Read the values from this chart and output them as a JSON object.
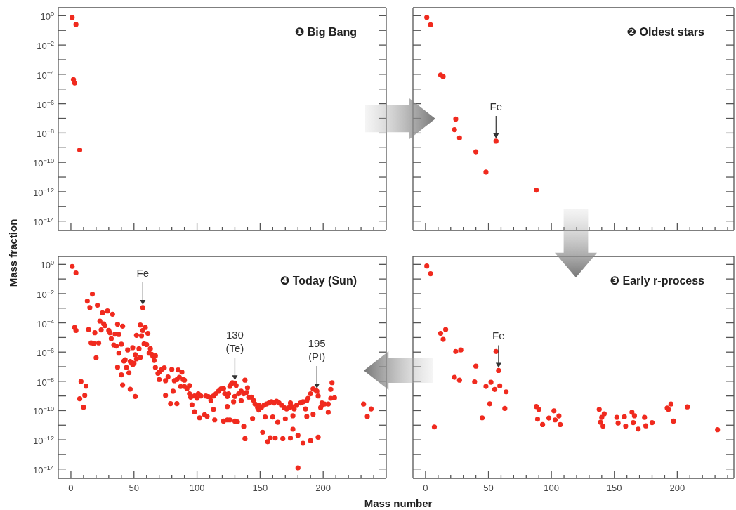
{
  "chart_data": [
    {
      "type": "scatter",
      "title": "❶ Big Bang",
      "color": "#f02a1e",
      "marker": "circle",
      "log": true,
      "tick_labels": "y",
      "xlim": [
        -10,
        250
      ],
      "ylim": [
        2.3e-15,
        3.5
      ],
      "xticks": [
        0,
        {
          "value": 10,
          "label": null
        },
        {
          "value": 20,
          "label": null
        },
        {
          "value": 30,
          "label": null
        },
        {
          "value": 40,
          "label": null
        },
        50,
        {
          "value": 60,
          "label": null
        },
        {
          "value": 70,
          "label": null
        },
        {
          "value": 80,
          "label": null
        },
        {
          "value": 90,
          "label": null
        },
        100,
        {
          "value": 110,
          "label": null
        },
        {
          "value": 120,
          "label": null
        },
        {
          "value": 130,
          "label": null
        },
        {
          "value": 140,
          "label": null
        },
        150,
        {
          "value": 160,
          "label": null
        },
        {
          "value": 170,
          "label": null
        },
        {
          "value": 180,
          "label": null
        },
        {
          "value": 190,
          "label": null
        },
        200,
        {
          "value": 210,
          "label": null
        },
        {
          "value": 220,
          "label": null
        },
        {
          "value": 230,
          "label": null
        },
        {
          "value": 240,
          "label": null
        }
      ],
      "yticks": [
        {
          "value": 1,
          "label": "10$^{0}$"
        },
        {
          "value": 0.1,
          "label": null
        },
        {
          "value": 0.01,
          "label": "10$^{−2}$"
        },
        {
          "value": 0.001,
          "label": null
        },
        {
          "value": 0.0001,
          "label": "10$^{−4}$"
        },
        {
          "value": 1e-05,
          "label": null
        },
        {
          "value": 1e-06,
          "label": "10$^{−6}$"
        },
        {
          "value": 1e-07,
          "label": null
        },
        {
          "value": 1e-08,
          "label": "10$^{−8}$"
        },
        {
          "value": 1e-09,
          "label": null
        },
        {
          "value": 1e-10,
          "label": "10$^{−10}$"
        },
        {
          "value": 1e-11,
          "label": null
        },
        {
          "value": 1e-12,
          "label": "10$^{−12}$"
        },
        {
          "value": 1e-13,
          "label": null
        },
        {
          "value": 1e-14,
          "label": "10$^{−14}$"
        }
      ],
      "x": [
        1,
        4,
        2,
        3,
        7
      ],
      "values": [
        0.75,
        0.25,
        4.4e-05,
        2.6e-05,
        7e-10
      ]
    },
    {
      "type": "scatter",
      "title": "❷ Oldest stars",
      "color": "#f02a1e",
      "marker": "circle",
      "log": true,
      "tick_labels": false,
      "xlim": [
        -10,
        245
      ],
      "ylim": [
        2.3e-15,
        3.5
      ],
      "xticks": [
        0,
        {
          "value": 10,
          "label": null
        },
        {
          "value": 20,
          "label": null
        },
        {
          "value": 30,
          "label": null
        },
        {
          "value": 40,
          "label": null
        },
        50,
        {
          "value": 60,
          "label": null
        },
        {
          "value": 70,
          "label": null
        },
        {
          "value": 80,
          "label": null
        },
        {
          "value": 90,
          "label": null
        },
        100,
        {
          "value": 110,
          "label": null
        },
        {
          "value": 120,
          "label": null
        },
        {
          "value": 130,
          "label": null
        },
        {
          "value": 140,
          "label": null
        },
        150,
        {
          "value": 160,
          "label": null
        },
        {
          "value": 170,
          "label": null
        },
        {
          "value": 180,
          "label": null
        },
        {
          "value": 190,
          "label": null
        },
        200,
        {
          "value": 210,
          "label": null
        },
        {
          "value": 220,
          "label": null
        },
        {
          "value": 230,
          "label": null
        },
        {
          "value": 240,
          "label": null
        }
      ],
      "yticks": [
        {
          "value": 1,
          "label": null
        },
        {
          "value": 0.1,
          "label": null
        },
        {
          "value": 0.01,
          "label": null
        },
        {
          "value": 0.001,
          "label": null
        },
        {
          "value": 0.0001,
          "label": null
        },
        {
          "value": 1e-05,
          "label": null
        },
        {
          "value": 1e-06,
          "label": null
        },
        {
          "value": 1e-07,
          "label": null
        },
        {
          "value": 1e-08,
          "label": null
        },
        {
          "value": 1e-09,
          "label": null
        },
        {
          "value": 1e-10,
          "label": null
        },
        {
          "value": 1e-11,
          "label": null
        },
        {
          "value": 1e-12,
          "label": null
        },
        {
          "value": 1e-13,
          "label": null
        },
        {
          "value": 1e-14,
          "label": null
        }
      ],
      "annotations": [
        {
          "text": "Fe",
          "x": 56,
          "y": 2.8e-09
        }
      ],
      "x": [
        1,
        4,
        12,
        14,
        24,
        23,
        27,
        40,
        48,
        56,
        88
      ],
      "values": [
        0.77,
        0.24,
        9e-05,
        7e-05,
        9e-08,
        1.7e-08,
        4.7e-09,
        5.3e-10,
        2.2e-11,
        2.8e-09,
        1.3e-12
      ]
    },
    {
      "type": "scatter",
      "title": "❹ Today (Sun)",
      "ylabel": "Mass fraction",
      "color": "#f02a1e",
      "marker": "circle",
      "log": true,
      "xlim": [
        -10,
        250
      ],
      "ylim": [
        2.3e-15,
        3.5
      ],
      "xticks": [
        0,
        {
          "value": 10,
          "label": null
        },
        {
          "value": 20,
          "label": null
        },
        {
          "value": 30,
          "label": null
        },
        {
          "value": 40,
          "label": null
        },
        50,
        {
          "value": 60,
          "label": null
        },
        {
          "value": 70,
          "label": null
        },
        {
          "value": 80,
          "label": null
        },
        {
          "value": 90,
          "label": null
        },
        100,
        {
          "value": 110,
          "label": null
        },
        {
          "value": 120,
          "label": null
        },
        {
          "value": 130,
          "label": null
        },
        {
          "value": 140,
          "label": null
        },
        150,
        {
          "value": 160,
          "label": null
        },
        {
          "value": 170,
          "label": null
        },
        {
          "value": 180,
          "label": null
        },
        {
          "value": 190,
          "label": null
        },
        200,
        {
          "value": 210,
          "label": null
        },
        {
          "value": 220,
          "label": null
        },
        {
          "value": 230,
          "label": null
        },
        {
          "value": 240,
          "label": null
        }
      ],
      "yticks": [
        {
          "value": 1,
          "label": "10$^{0}$"
        },
        {
          "value": 0.1,
          "label": null
        },
        {
          "value": 0.01,
          "label": "10$^{−2}$"
        },
        {
          "value": 0.001,
          "label": null
        },
        {
          "value": 0.0001,
          "label": "10$^{−4}$"
        },
        {
          "value": 1e-05,
          "label": null
        },
        {
          "value": 1e-06,
          "label": "10$^{−6}$"
        },
        {
          "value": 1e-07,
          "label": null
        },
        {
          "value": 1e-08,
          "label": "10$^{−8}$"
        },
        {
          "value": 1e-09,
          "label": null
        },
        {
          "value": 1e-10,
          "label": "10$^{−10}$"
        },
        {
          "value": 1e-11,
          "label": null
        },
        {
          "value": 1e-12,
          "label": "10$^{−12}$"
        },
        {
          "value": 1e-13,
          "label": null
        },
        {
          "value": 1e-14,
          "label": "10$^{−14}$"
        }
      ],
      "annotations": [
        {
          "text": "Fe",
          "x": 57,
          "y": 0.0011
        },
        {
          "text": "130\n(Te)",
          "x": 130,
          "y": 7.6e-09
        },
        {
          "text": "195\n(Pt)",
          "x": 195,
          "y": 2.1e-09
        }
      ],
      "x": [
        1,
        4,
        3,
        4,
        8,
        7,
        12,
        11,
        10,
        13,
        17,
        15,
        14,
        21,
        16,
        18,
        19,
        22,
        20,
        23,
        25,
        24,
        26,
        27,
        29,
        33,
        30,
        31,
        32,
        34,
        35,
        36,
        37,
        38,
        41,
        40,
        38,
        37,
        40,
        41,
        43,
        42,
        44,
        45,
        46,
        47,
        47,
        48,
        49,
        49,
        50,
        51,
        51,
        52,
        52,
        54,
        55,
        55,
        56,
        57,
        57,
        59,
        58,
        60,
        61,
        63,
        62,
        64,
        65,
        67,
        66,
        67,
        69,
        70,
        70,
        72,
        74,
        75,
        75,
        77,
        79,
        80,
        81,
        82,
        84,
        84,
        85,
        86,
        87,
        88,
        89,
        90,
        90,
        92,
        94,
        94,
        95,
        96,
        98,
        98,
        100,
        101,
        102,
        103,
        106,
        108,
        107,
        109,
        111,
        113,
        113,
        114,
        115,
        117,
        119,
        121,
        121,
        122,
        124,
        124,
        124,
        126,
        125,
        126,
        127,
        128,
        130,
        131,
        130,
        129,
        130,
        132,
        133,
        135,
        135,
        137,
        137,
        138,
        138,
        139,
        140,
        141,
        143,
        144,
        145,
        146,
        148,
        149,
        149,
        151,
        152,
        153,
        154,
        155,
        156,
        157,
        158,
        159,
        160,
        161,
        162,
        163,
        164,
        165,
        167,
        168,
        169,
        170,
        171,
        173,
        174,
        174,
        175,
        176,
        176,
        177,
        179,
        180,
        180,
        182,
        184,
        184,
        186,
        187,
        187,
        188,
        190,
        190,
        192,
        192,
        194,
        195,
        196,
        196,
        198,
        199,
        199,
        201,
        204,
        204,
        206,
        206,
        207,
        209,
        232,
        235,
        238
      ],
      "values": [
        0.72,
        0.26,
        4.8e-05,
        3e-05,
        9.8e-09,
        6.4e-10,
        4.7e-09,
        1.1e-09,
        1.7e-10,
        0.0031,
        0.0093,
        0.0011,
        3.5e-05,
        0.0016,
        4.3e-06,
        3.9e-06,
        2.1e-05,
        4.2e-06,
        4.1e-07,
        0.00013,
        0.00048,
        3.3e-05,
        8.5e-05,
        6.3e-05,
        0.00065,
        0.00039,
        3e-05,
        2.1e-05,
        8.3e-06,
        3.1e-06,
        1.7e-05,
        2.6e-06,
        8e-05,
        1.6e-05,
        5.9e-05,
        3.5e-06,
        8.5e-07,
        9.3e-08,
        2.8e-08,
        5.6e-09,
        3e-07,
        2.4e-07,
        8.9e-08,
        1.4e-06,
        3.8e-08,
        2.9e-09,
        2.3e-07,
        1.9e-07,
        2e-06,
        1.4e-07,
        1.7e-07,
        6.6e-07,
        9.3e-10,
        3.4e-07,
        1.4e-05,
        1.7e-06,
        4.4e-07,
        7.1e-05,
        1.3e-05,
        0.0011,
        3e-05,
        4.8e-05,
        3.7e-06,
        3.3e-06,
        1.9e-05,
        1.7e-06,
        8.5e-07,
        7.1e-07,
        5.2e-07,
        5.6e-07,
        2.7e-07,
        8.9e-08,
        3.5e-08,
        4.3e-08,
        1.3e-08,
        6.6e-08,
        8.3e-08,
        1.1e-09,
        1.1e-08,
        2e-08,
        3e-10,
        6.5e-08,
        2.1e-09,
        1.1e-08,
        1.3e-08,
        3e-10,
        6e-08,
        1.9e-08,
        4.4e-09,
        4.3e-08,
        1.3e-08,
        1.2e-08,
        4.4e-09,
        3.2e-09,
        1.4e-09,
        5.2e-09,
        8.3e-10,
        2.5e-10,
        1e-09,
        8.3e-11,
        6.9e-10,
        1.4e-09,
        3.2e-11,
        1e-09,
        5.2e-11,
        4e-11,
        1e-09,
        8.9e-10,
        4.8e-10,
        1e-09,
        1.2e-10,
        2.3e-11,
        1.4e-09,
        2.1e-09,
        3e-09,
        3.2e-09,
        1.9e-11,
        1.4e-09,
        9.3e-10,
        1.9e-10,
        2.3e-11,
        2.3e-11,
        1.4e-09,
        4.4e-09,
        6.3e-09,
        8.1e-09,
        7.6e-09,
        5.2e-09,
        9.3e-10,
        4e-10,
        1.9e-11,
        1.7e-11,
        1.4e-09,
        2.1e-09,
        4.7e-10,
        8.3e-12,
        1.4e-09,
        1.2e-08,
        1.2e-12,
        1.7e-09,
        3.6e-09,
        8.3e-10,
        8.3e-10,
        2.8e-11,
        4.8e-10,
        2.8e-10,
        1.6e-10,
        1.1e-10,
        2.3e-10,
        1.6e-10,
        3.3e-12,
        2.3e-10,
        3.6e-11,
        2.8e-10,
        7.4e-13,
        3.3e-10,
        1.4e-12,
        4e-10,
        3.6e-11,
        3.3e-10,
        1.3e-12,
        4.4e-10,
        1.6e-11,
        3.3e-10,
        2.3e-10,
        1.2e-12,
        1.6e-10,
        2.7e-11,
        1.3e-10,
        1.6e-10,
        3.3e-10,
        1.3e-12,
        1.9e-10,
        5.3e-12,
        4.4e-11,
        1.3e-10,
        2.3e-10,
        1.2e-14,
        2e-12,
        3.3e-10,
        4e-10,
        5.8e-13,
        1.3e-10,
        4.8e-10,
        3.9e-11,
        6.9e-10,
        8.9e-13,
        1.4e-09,
        5.6e-11,
        3e-09,
        2.5e-09,
        2.1e-09,
        1e-09,
        1.5e-12,
        1.6e-10,
        3.3e-10,
        2.3e-10,
        2.8e-10,
        7.6e-11,
        2.8e-10,
        6.9e-10,
        2.8e-09,
        8.1e-09,
        7.4e-10,
        2.8e-10,
        3.9e-11,
        1.3e-10
      ]
    },
    {
      "type": "scatter",
      "title": "❸ Early r-process",
      "xlabel": "Mass number",
      "color": "#f02a1e",
      "marker": "circle",
      "log": true,
      "tick_labels": "x",
      "xlim": [
        -10,
        245
      ],
      "ylim": [
        2.3e-15,
        3.5
      ],
      "xticks": [
        0,
        {
          "value": 10,
          "label": null
        },
        {
          "value": 20,
          "label": null
        },
        {
          "value": 30,
          "label": null
        },
        {
          "value": 40,
          "label": null
        },
        50,
        {
          "value": 60,
          "label": null
        },
        {
          "value": 70,
          "label": null
        },
        {
          "value": 80,
          "label": null
        },
        {
          "value": 90,
          "label": null
        },
        100,
        {
          "value": 110,
          "label": null
        },
        {
          "value": 120,
          "label": null
        },
        {
          "value": 130,
          "label": null
        },
        {
          "value": 140,
          "label": null
        },
        150,
        {
          "value": 160,
          "label": null
        },
        {
          "value": 170,
          "label": null
        },
        {
          "value": 180,
          "label": null
        },
        {
          "value": 190,
          "label": null
        },
        200,
        {
          "value": 210,
          "label": null
        },
        {
          "value": 220,
          "label": null
        },
        {
          "value": 230,
          "label": null
        },
        {
          "value": 240,
          "label": null
        }
      ],
      "yticks": [
        {
          "value": 1,
          "label": null
        },
        {
          "value": 0.1,
          "label": null
        },
        {
          "value": 0.01,
          "label": null
        },
        {
          "value": 0.001,
          "label": null
        },
        {
          "value": 0.0001,
          "label": null
        },
        {
          "value": 1e-05,
          "label": null
        },
        {
          "value": 1e-06,
          "label": null
        },
        {
          "value": 1e-07,
          "label": null
        },
        {
          "value": 1e-08,
          "label": null
        },
        {
          "value": 1e-09,
          "label": null
        },
        {
          "value": 1e-10,
          "label": null
        },
        {
          "value": 1e-11,
          "label": null
        },
        {
          "value": 1e-12,
          "label": null
        },
        {
          "value": 1e-13,
          "label": null
        },
        {
          "value": 1e-14,
          "label": null
        }
      ],
      "annotations": [
        {
          "text": "Fe",
          "x": 58,
          "y": 5.5e-08
        }
      ],
      "x": [
        1,
        4,
        7,
        12,
        14,
        16,
        24,
        28,
        23,
        27,
        40,
        39,
        45,
        48,
        52,
        51,
        55,
        56,
        58,
        59,
        64,
        63,
        88,
        90,
        89,
        93,
        98,
        102,
        103,
        106,
        107,
        138,
        142,
        140,
        139,
        141,
        152,
        153,
        158,
        159,
        164,
        166,
        165,
        169,
        174,
        175,
        180,
        192,
        193,
        195,
        197,
        208,
        232
      ],
      "values": [
        0.77,
        0.23,
        7.6e-12,
        1.9e-05,
        7.4e-06,
        3.5e-05,
        1.1e-06,
        1.4e-06,
        1.9e-08,
        1.2e-08,
        1.1e-07,
        9.3e-09,
        3.2e-11,
        4.5e-09,
        8.7e-09,
        2.9e-10,
        2.8e-09,
        1.1e-06,
        5.5e-08,
        4.8e-09,
        1.9e-09,
        1.4e-10,
        1.9e-10,
        1.2e-10,
        2.6e-11,
        1.1e-11,
        3.1e-11,
        9.6e-11,
        2.3e-11,
        4.3e-11,
        1.1e-11,
        1.2e-10,
        6e-11,
        3.4e-11,
        1.6e-11,
        8.7e-12,
        3.4e-11,
        1.4e-11,
        3.7e-11,
        8.7e-12,
        7.7e-11,
        4.4e-11,
        1.5e-11,
        5.4e-12,
        3.4e-11,
        9.1e-12,
        1.5e-11,
        1.5e-10,
        1.2e-10,
        2.8e-10,
        1.9e-11,
        1.8e-10,
        4.9e-12
      ]
    }
  ]
}
